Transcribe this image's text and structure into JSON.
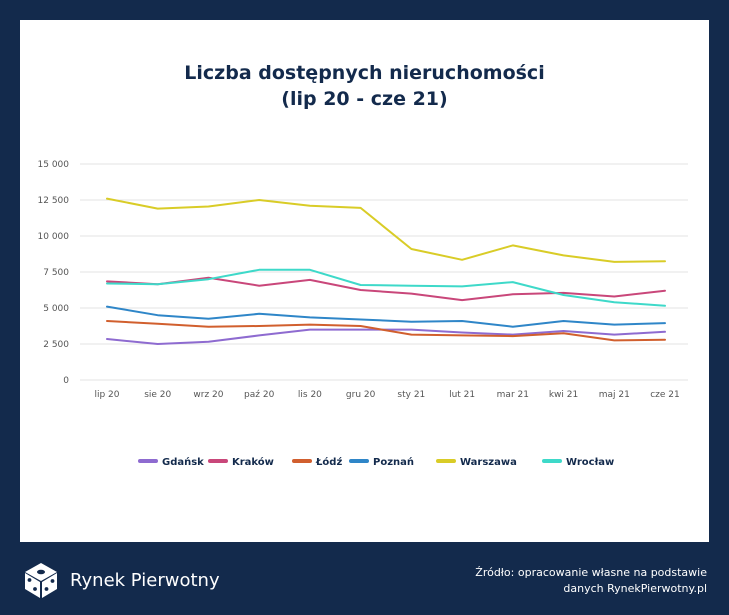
{
  "chart_data": {
    "type": "line",
    "title_line1": "Liczba dostępnych nieruchomości",
    "title_line2": "(lip 20 - cze 21)",
    "categories": [
      "lip 20",
      "sie 20",
      "wrz 20",
      "paź 20",
      "lis 20",
      "gru 20",
      "sty 21",
      "lut 21",
      "mar 21",
      "kwi 21",
      "maj 21",
      "cze 21"
    ],
    "ylim": [
      0,
      15000
    ],
    "yticks": [
      {
        "value": 0,
        "label": "0"
      },
      {
        "value": 2500,
        "label": "2 500"
      },
      {
        "value": 5000,
        "label": "5 000"
      },
      {
        "value": 7500,
        "label": "7 500"
      },
      {
        "value": 10000,
        "label": "10 000"
      },
      {
        "value": 12500,
        "label": "12 500"
      },
      {
        "value": 15000,
        "label": "15 000"
      }
    ],
    "grid": true,
    "legend_position": "bottom",
    "series": [
      {
        "name": "Gdańsk",
        "color": "#8e6bd0",
        "values": [
          2850,
          2500,
          2650,
          3100,
          3500,
          3500,
          3500,
          3300,
          3150,
          3400,
          3150,
          3350
        ]
      },
      {
        "name": "Kraków",
        "color": "#c9477a",
        "values": [
          6850,
          6650,
          7100,
          6550,
          6950,
          6250,
          6000,
          5550,
          5950,
          6050,
          5800,
          6200
        ]
      },
      {
        "name": "Łódź",
        "color": "#d15f2e",
        "values": [
          4100,
          3900,
          3700,
          3750,
          3850,
          3750,
          3150,
          3100,
          3050,
          3250,
          2750,
          2800
        ]
      },
      {
        "name": "Poznań",
        "color": "#2f86c8",
        "values": [
          5100,
          4500,
          4250,
          4600,
          4350,
          4200,
          4050,
          4100,
          3700,
          4100,
          3850,
          3950
        ]
      },
      {
        "name": "Warszawa",
        "color": "#d9cc27",
        "values": [
          12600,
          11900,
          12050,
          12500,
          12100,
          11950,
          9100,
          8350,
          9350,
          8650,
          8200,
          8250
        ]
      },
      {
        "name": "Wrocław",
        "color": "#3ed9c9",
        "values": [
          6700,
          6650,
          7000,
          7650,
          7650,
          6600,
          6550,
          6500,
          6800,
          5900,
          5400,
          5150
        ]
      }
    ]
  },
  "footer": {
    "brand": "Rynek Pierwotny",
    "source_line1": "Źródło: opracowanie własne na podstawie",
    "source_line2": "danych RynekPierwotny.pl"
  }
}
